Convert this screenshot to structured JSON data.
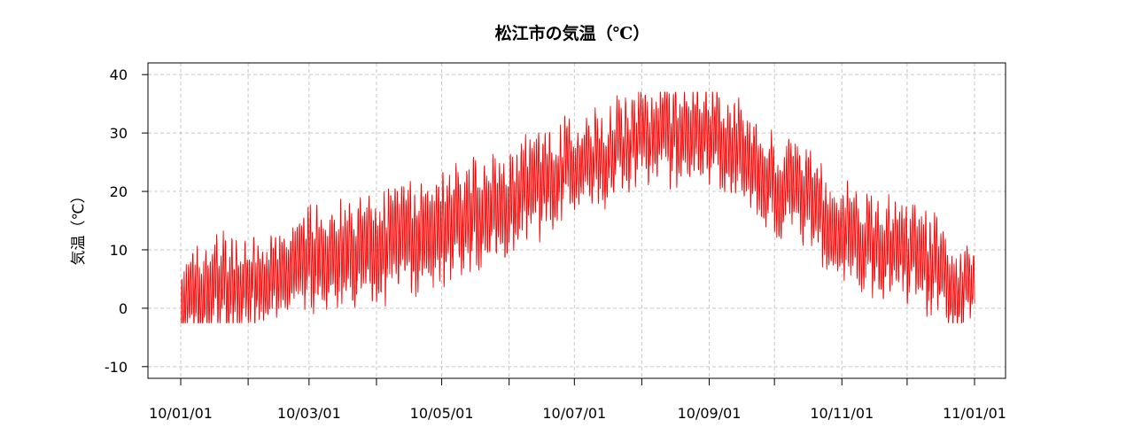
{
  "chart_data": {
    "type": "line",
    "title": "松江市の気温（℃）",
    "xlabel": "",
    "ylabel": "気温（℃）",
    "ylim": [
      -12,
      42
    ],
    "x_ticks": [
      "10/01/01",
      "10/03/01",
      "10/05/01",
      "10/07/01",
      "10/09/01",
      "10/11/01",
      "11/01/01"
    ],
    "x_minor_ticks": [
      "10/02/01",
      "10/04/01",
      "10/06/01",
      "10/08/01",
      "10/10/01",
      "10/12/01"
    ],
    "x_range": [
      "2010-01-01",
      "2011-01-01"
    ],
    "y_ticks": [
      -10,
      0,
      10,
      20,
      30,
      40
    ],
    "grid": true,
    "series": [
      {
        "color": "#ff0000",
        "x": [
          "2010-01-01",
          "2010-01-15",
          "2010-02-01",
          "2010-02-15",
          "2010-03-01",
          "2010-03-15",
          "2010-04-01",
          "2010-04-15",
          "2010-05-01",
          "2010-05-15",
          "2010-06-01",
          "2010-06-15",
          "2010-07-01",
          "2010-07-15",
          "2010-08-01",
          "2010-08-15",
          "2010-09-01",
          "2010-09-15",
          "2010-10-01",
          "2010-10-15",
          "2010-11-01",
          "2010-11-15",
          "2010-12-01",
          "2010-12-15",
          "2011-01-01"
        ],
        "y_mean": [
          3,
          4.5,
          5,
          4.5,
          8.5,
          9,
          10,
          12,
          14,
          16,
          18.5,
          21,
          25,
          26,
          29,
          30,
          30,
          27,
          21,
          19.5,
          13,
          11,
          9,
          7,
          2
        ],
        "y_range": [
          10,
          11,
          10,
          10,
          12,
          12,
          13,
          13,
          13,
          13,
          12,
          12,
          10,
          10,
          10,
          11,
          11,
          11,
          11,
          11,
          11,
          11,
          11,
          11,
          8
        ],
        "y_min": -2.5,
        "y_max": 37
      }
    ]
  }
}
